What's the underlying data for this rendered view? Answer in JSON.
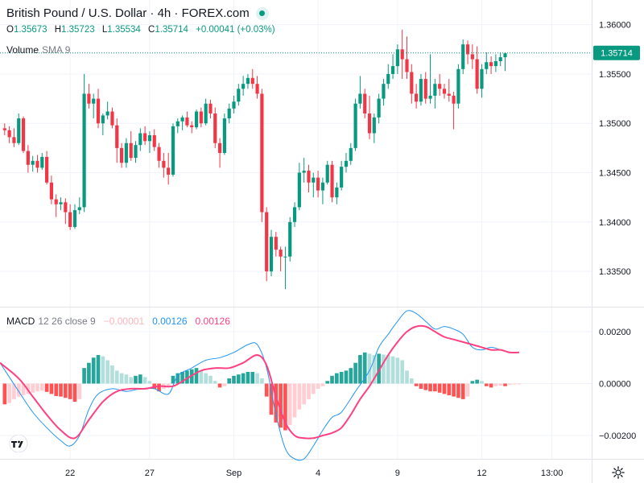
{
  "header": {
    "title": "British Pound / U.S. Dollar · 4h · FOREX.com",
    "ohlc": [
      {
        "k": "O",
        "v": "1.35673"
      },
      {
        "k": "H",
        "v": "1.35723"
      },
      {
        "k": "L",
        "v": "1.35534"
      },
      {
        "k": "C",
        "v": "1.35714"
      }
    ],
    "change": "+0.00041 (+0.03%)",
    "volume_label": "Volume",
    "volume_sub": "SMA 9"
  },
  "macd_header": {
    "label": "MACD",
    "params": "12 26 close 9",
    "histogram_value": "−0.00001",
    "macd_value": "0.00126",
    "signal_value": "0.00126"
  },
  "colors": {
    "up": "#089981",
    "down": "#f23645",
    "macd_line": "#2196f3",
    "signal_line": "#ff4081",
    "hist_up_strong": "#26a69a",
    "hist_up_weak": "#b2dfdb",
    "hist_down_strong": "#ff5252",
    "hist_down_weak": "#ffcdd2"
  },
  "chart_data": [
    {
      "type": "candlestick",
      "title": "British Pound / U.S. Dollar · 4h · FOREX.com",
      "price_axis_ticks": [
        "1.36000",
        "1.35500",
        "1.35000",
        "1.34500",
        "1.34000",
        "1.33500"
      ],
      "price_axis_values": [
        1.36,
        1.355,
        1.35,
        1.345,
        1.34,
        1.335
      ],
      "ylim": [
        1.3315,
        1.3625
      ],
      "last_price_label": "1.35714",
      "last_price": 1.35714,
      "x_ticks": [
        "22",
        "27",
        "Sep",
        "4",
        "9",
        "12",
        "13:00"
      ],
      "x_tick_index": [
        14,
        31,
        49,
        67,
        84,
        102,
        117
      ],
      "x_range": [
        -1.0,
        125.5
      ],
      "candles": [
        [
          1.3495,
          1.35,
          1.3488,
          1.3493
        ],
        [
          1.3493,
          1.3497,
          1.348,
          1.3486
        ],
        [
          1.3486,
          1.3495,
          1.3476,
          1.348
        ],
        [
          1.348,
          1.351,
          1.3478,
          1.3505
        ],
        [
          1.3505,
          1.3507,
          1.347,
          1.3472
        ],
        [
          1.3472,
          1.3478,
          1.345,
          1.3458
        ],
        [
          1.3458,
          1.3467,
          1.3451,
          1.3462
        ],
        [
          1.3462,
          1.3468,
          1.345,
          1.3455
        ],
        [
          1.3455,
          1.347,
          1.3453,
          1.3466
        ],
        [
          1.3466,
          1.3472,
          1.3438,
          1.344
        ],
        [
          1.344,
          1.3447,
          1.3418,
          1.3423
        ],
        [
          1.3423,
          1.3428,
          1.3405,
          1.3418
        ],
        [
          1.3418,
          1.3425,
          1.3412,
          1.342
        ],
        [
          1.342,
          1.3424,
          1.3398,
          1.341
        ],
        [
          1.341,
          1.3418,
          1.3392,
          1.3395
        ],
        [
          1.3395,
          1.3418,
          1.3393,
          1.3412
        ],
        [
          1.3412,
          1.3425,
          1.3408,
          1.3415
        ],
        [
          1.3415,
          1.355,
          1.341,
          1.353
        ],
        [
          1.353,
          1.354,
          1.3515,
          1.352
        ],
        [
          1.352,
          1.353,
          1.3505,
          1.3525
        ],
        [
          1.3525,
          1.3535,
          1.3495,
          1.35
        ],
        [
          1.35,
          1.351,
          1.3488,
          1.3508
        ],
        [
          1.3508,
          1.3522,
          1.3504,
          1.3512
        ],
        [
          1.3512,
          1.3516,
          1.3495,
          1.3498
        ],
        [
          1.3498,
          1.3505,
          1.346,
          1.3475
        ],
        [
          1.3475,
          1.348,
          1.3455,
          1.346
        ],
        [
          1.346,
          1.3485,
          1.3455,
          1.348
        ],
        [
          1.348,
          1.3492,
          1.3462,
          1.3465
        ],
        [
          1.3465,
          1.3482,
          1.346,
          1.3478
        ],
        [
          1.3478,
          1.3495,
          1.3472,
          1.349
        ],
        [
          1.349,
          1.3497,
          1.3478,
          1.3482
        ],
        [
          1.3482,
          1.3492,
          1.347,
          1.3488
        ],
        [
          1.3488,
          1.3494,
          1.3472,
          1.3476
        ],
        [
          1.3476,
          1.348,
          1.3455,
          1.3462
        ],
        [
          1.3462,
          1.347,
          1.3445,
          1.3455
        ],
        [
          1.3455,
          1.347,
          1.3438,
          1.3448
        ],
        [
          1.3448,
          1.35,
          1.3446,
          1.3497
        ],
        [
          1.3497,
          1.3505,
          1.349,
          1.3502
        ],
        [
          1.3502,
          1.3508,
          1.3493,
          1.3506
        ],
        [
          1.3506,
          1.3512,
          1.3496,
          1.3498
        ],
        [
          1.3498,
          1.3502,
          1.349,
          1.3496
        ],
        [
          1.3496,
          1.3514,
          1.3494,
          1.3512
        ],
        [
          1.3512,
          1.3516,
          1.3496,
          1.35
        ],
        [
          1.35,
          1.3525,
          1.3498,
          1.352
        ],
        [
          1.352,
          1.3524,
          1.3505,
          1.351
        ],
        [
          1.351,
          1.3516,
          1.3475,
          1.348
        ],
        [
          1.348,
          1.3485,
          1.3455,
          1.347
        ],
        [
          1.347,
          1.351,
          1.3468,
          1.3505
        ],
        [
          1.3505,
          1.352,
          1.35,
          1.3515
        ],
        [
          1.3515,
          1.3528,
          1.351,
          1.3522
        ],
        [
          1.3522,
          1.354,
          1.3518,
          1.3535
        ],
        [
          1.3535,
          1.3548,
          1.3528,
          1.354
        ],
        [
          1.354,
          1.355,
          1.3535,
          1.3546
        ],
        [
          1.3546,
          1.3555,
          1.3535,
          1.354
        ],
        [
          1.354,
          1.3548,
          1.3525,
          1.353
        ],
        [
          1.353,
          1.3535,
          1.34,
          1.341
        ],
        [
          1.341,
          1.3415,
          1.334,
          1.335
        ],
        [
          1.335,
          1.3392,
          1.3345,
          1.3385
        ],
        [
          1.3385,
          1.339,
          1.3365,
          1.3372
        ],
        [
          1.3372,
          1.3375,
          1.335,
          1.3365
        ],
        [
          1.3365,
          1.3375,
          1.3332,
          1.3365
        ],
        [
          1.3365,
          1.3405,
          1.336,
          1.34
        ],
        [
          1.34,
          1.342,
          1.3395,
          1.3415
        ],
        [
          1.3415,
          1.346,
          1.3412,
          1.345
        ],
        [
          1.345,
          1.3465,
          1.344,
          1.3452
        ],
        [
          1.3452,
          1.3458,
          1.343,
          1.344
        ],
        [
          1.344,
          1.345,
          1.3425,
          1.3445
        ],
        [
          1.3445,
          1.3452,
          1.3425,
          1.3432
        ],
        [
          1.3432,
          1.3445,
          1.3418,
          1.344
        ],
        [
          1.344,
          1.3462,
          1.3438,
          1.3458
        ],
        [
          1.3458,
          1.3462,
          1.342,
          1.3425
        ],
        [
          1.3425,
          1.344,
          1.3418,
          1.3435
        ],
        [
          1.3435,
          1.3462,
          1.3432,
          1.3456
        ],
        [
          1.3456,
          1.347,
          1.345,
          1.3462
        ],
        [
          1.3462,
          1.348,
          1.3458,
          1.3475
        ],
        [
          1.3475,
          1.3525,
          1.3472,
          1.352
        ],
        [
          1.352,
          1.3548,
          1.3515,
          1.353
        ],
        [
          1.353,
          1.3535,
          1.3505,
          1.351
        ],
        [
          1.351,
          1.3528,
          1.3484,
          1.349
        ],
        [
          1.349,
          1.351,
          1.348,
          1.3506
        ],
        [
          1.3506,
          1.353,
          1.35,
          1.3525
        ],
        [
          1.3525,
          1.3545,
          1.3518,
          1.354
        ],
        [
          1.354,
          1.356,
          1.3535,
          1.355
        ],
        [
          1.355,
          1.357,
          1.3545,
          1.3558
        ],
        [
          1.3558,
          1.358,
          1.355,
          1.3575
        ],
        [
          1.3575,
          1.3595,
          1.3545,
          1.3565
        ],
        [
          1.3565,
          1.3588,
          1.3545,
          1.3552
        ],
        [
          1.3552,
          1.356,
          1.352,
          1.353
        ],
        [
          1.353,
          1.354,
          1.3515,
          1.3522
        ],
        [
          1.3522,
          1.355,
          1.3518,
          1.3545
        ],
        [
          1.3545,
          1.3552,
          1.352,
          1.3525
        ],
        [
          1.3525,
          1.357,
          1.352,
          1.3528
        ],
        [
          1.3528,
          1.3545,
          1.3515,
          1.354
        ],
        [
          1.354,
          1.355,
          1.3528,
          1.3535
        ],
        [
          1.3535,
          1.354,
          1.3525,
          1.353
        ],
        [
          1.353,
          1.3545,
          1.3522,
          1.3528
        ],
        [
          1.3528,
          1.3532,
          1.3494,
          1.352
        ],
        [
          1.352,
          1.356,
          1.3515,
          1.3555
        ],
        [
          1.3555,
          1.3585,
          1.355,
          1.358
        ],
        [
          1.358,
          1.3584,
          1.356,
          1.357
        ],
        [
          1.357,
          1.358,
          1.3555,
          1.3565
        ],
        [
          1.3565,
          1.3578,
          1.353,
          1.3535
        ],
        [
          1.3535,
          1.356,
          1.3526,
          1.3555
        ],
        [
          1.3555,
          1.3572,
          1.355,
          1.3562
        ],
        [
          1.3562,
          1.3568,
          1.355,
          1.3558
        ],
        [
          1.3558,
          1.357,
          1.3552,
          1.3563
        ],
        [
          1.3563,
          1.3572,
          1.3558,
          1.3567
        ],
        [
          1.3567,
          1.3572,
          1.3553,
          1.3571
        ]
      ]
    },
    {
      "type": "macd",
      "title": "MACD 12 26 close 9",
      "axis_ticks": [
        "0.00200",
        "0.00000",
        "−0.00200"
      ],
      "axis_values": [
        0.002,
        0.0,
        -0.002
      ],
      "ylim": [
        -0.0029,
        0.0029
      ],
      "macd": [
        [
          -1,
          0.0008
        ],
        [
          3,
          -0.0003
        ],
        [
          6,
          -0.0011
        ],
        [
          9,
          -0.0017
        ],
        [
          12,
          -0.0022
        ],
        [
          14,
          -0.0024
        ],
        [
          16,
          -0.002
        ],
        [
          18,
          -0.001
        ],
        [
          20,
          -0.0004
        ],
        [
          23,
          -0.0002
        ],
        [
          26,
          -0.0003
        ],
        [
          29,
          -0.0002
        ],
        [
          32,
          -0.0002
        ],
        [
          35,
          -0.0004
        ],
        [
          37,
          0.0003
        ],
        [
          40,
          0.0006
        ],
        [
          43,
          0.0009
        ],
        [
          46,
          0.001
        ],
        [
          49,
          0.0012
        ],
        [
          52,
          0.0015
        ],
        [
          54,
          0.0015
        ],
        [
          56,
          0.0006
        ],
        [
          58,
          -0.0012
        ],
        [
          60,
          -0.0025
        ],
        [
          62,
          -0.0029
        ],
        [
          64,
          -0.0029
        ],
        [
          66,
          -0.0024
        ],
        [
          68,
          -0.0018
        ],
        [
          70,
          -0.0013
        ],
        [
          72,
          -0.0011
        ],
        [
          75,
          -0.0003
        ],
        [
          78,
          0.0005
        ],
        [
          80,
          0.0014
        ],
        [
          82,
          0.0019
        ],
        [
          84,
          0.0024
        ],
        [
          86,
          0.0028
        ],
        [
          88,
          0.0027
        ],
        [
          90,
          0.0024
        ],
        [
          92,
          0.0021
        ],
        [
          94,
          0.0022
        ],
        [
          96,
          0.0021
        ],
        [
          98,
          0.0019
        ],
        [
          100,
          0.0014
        ],
        [
          102,
          0.0013
        ],
        [
          104,
          0.0014
        ],
        [
          106,
          0.0013
        ],
        [
          108,
          0.0012
        ],
        [
          110,
          0.0012
        ]
      ],
      "signal": [
        [
          -1,
          0.0008
        ],
        [
          3,
          0.0002
        ],
        [
          6,
          -0.0005
        ],
        [
          9,
          -0.0012
        ],
        [
          12,
          -0.0018
        ],
        [
          15,
          -0.0021
        ],
        [
          18,
          -0.0014
        ],
        [
          21,
          -0.0007
        ],
        [
          24,
          -0.0003
        ],
        [
          27,
          -0.0002
        ],
        [
          30,
          -0.0002
        ],
        [
          33,
          -0.0001
        ],
        [
          36,
          -0.0001
        ],
        [
          39,
          0.0002
        ],
        [
          42,
          0.0005
        ],
        [
          45,
          0.0006
        ],
        [
          48,
          0.0006
        ],
        [
          51,
          0.0008
        ],
        [
          54,
          0.0011
        ],
        [
          56,
          0.0007
        ],
        [
          58,
          -0.0005
        ],
        [
          60,
          -0.0015
        ],
        [
          62,
          -0.002
        ],
        [
          64,
          -0.0021
        ],
        [
          66,
          -0.0021
        ],
        [
          68,
          -0.002
        ],
        [
          70,
          -0.0019
        ],
        [
          72,
          -0.0017
        ],
        [
          74,
          -0.0012
        ],
        [
          76,
          -0.0006
        ],
        [
          78,
          -0.0001
        ],
        [
          80,
          0.0005
        ],
        [
          82,
          0.0011
        ],
        [
          84,
          0.0016
        ],
        [
          86,
          0.002
        ],
        [
          88,
          0.0022
        ],
        [
          90,
          0.0022
        ],
        [
          92,
          0.002
        ],
        [
          94,
          0.0018
        ],
        [
          96,
          0.0017
        ],
        [
          98,
          0.0016
        ],
        [
          100,
          0.0015
        ],
        [
          102,
          0.0014
        ],
        [
          104,
          0.0013
        ],
        [
          106,
          0.0013
        ],
        [
          108,
          0.0012
        ],
        [
          110,
          0.0012
        ]
      ],
      "histogram": [
        -0.0008,
        -0.00075,
        -0.0006,
        -0.0005,
        -0.00045,
        -0.0004,
        -0.00035,
        -0.0003,
        -0.00028,
        -0.00032,
        -0.0004,
        -0.00048,
        -0.0005,
        -0.00055,
        -0.0006,
        -0.0007,
        -0.0006,
        0.0006,
        0.0008,
        0.001,
        0.0011,
        0.00105,
        0.0009,
        0.0007,
        0.0005,
        0.0004,
        0.00035,
        0.00025,
        0.0003,
        0.00035,
        0.00025,
        0.0001,
        -0.0002,
        -0.0003,
        -0.0002,
        -0.0001,
        0.0003,
        0.0004,
        0.00045,
        0.0005,
        0.00055,
        0.0006,
        0.0005,
        0.0004,
        0.0003,
        0.0001,
        -0.00015,
        -0.0001,
        0.0002,
        0.0003,
        0.00035,
        0.0004,
        0.00045,
        0.00045,
        0.0004,
        0.0002,
        -0.0005,
        -0.0012,
        -0.0015,
        -0.0017,
        -0.0018,
        -0.0016,
        -0.0013,
        -0.001,
        -0.0008,
        -0.0006,
        -0.0004,
        -0.0002,
        -0.0001,
        0.0001,
        0.0003,
        0.0004,
        0.00045,
        0.0005,
        0.0006,
        0.0008,
        0.0011,
        0.0012,
        0.00115,
        0.0011,
        0.00115,
        0.00112,
        0.0011,
        0.00105,
        0.001,
        0.0009,
        0.0005,
        0.0002,
        -0.0001,
        -0.0002,
        -0.00025,
        -0.0003,
        -0.0003,
        -0.00035,
        -0.0004,
        -0.00045,
        -0.0005,
        -0.00055,
        -0.0006,
        -0.0005,
        0.0001,
        0.00015,
        0.0001,
        -0.0001,
        -0.00015,
        -0.0001,
        -8e-05,
        -0.0001,
        -5e-05,
        -3e-05,
        -1e-05
      ]
    }
  ]
}
